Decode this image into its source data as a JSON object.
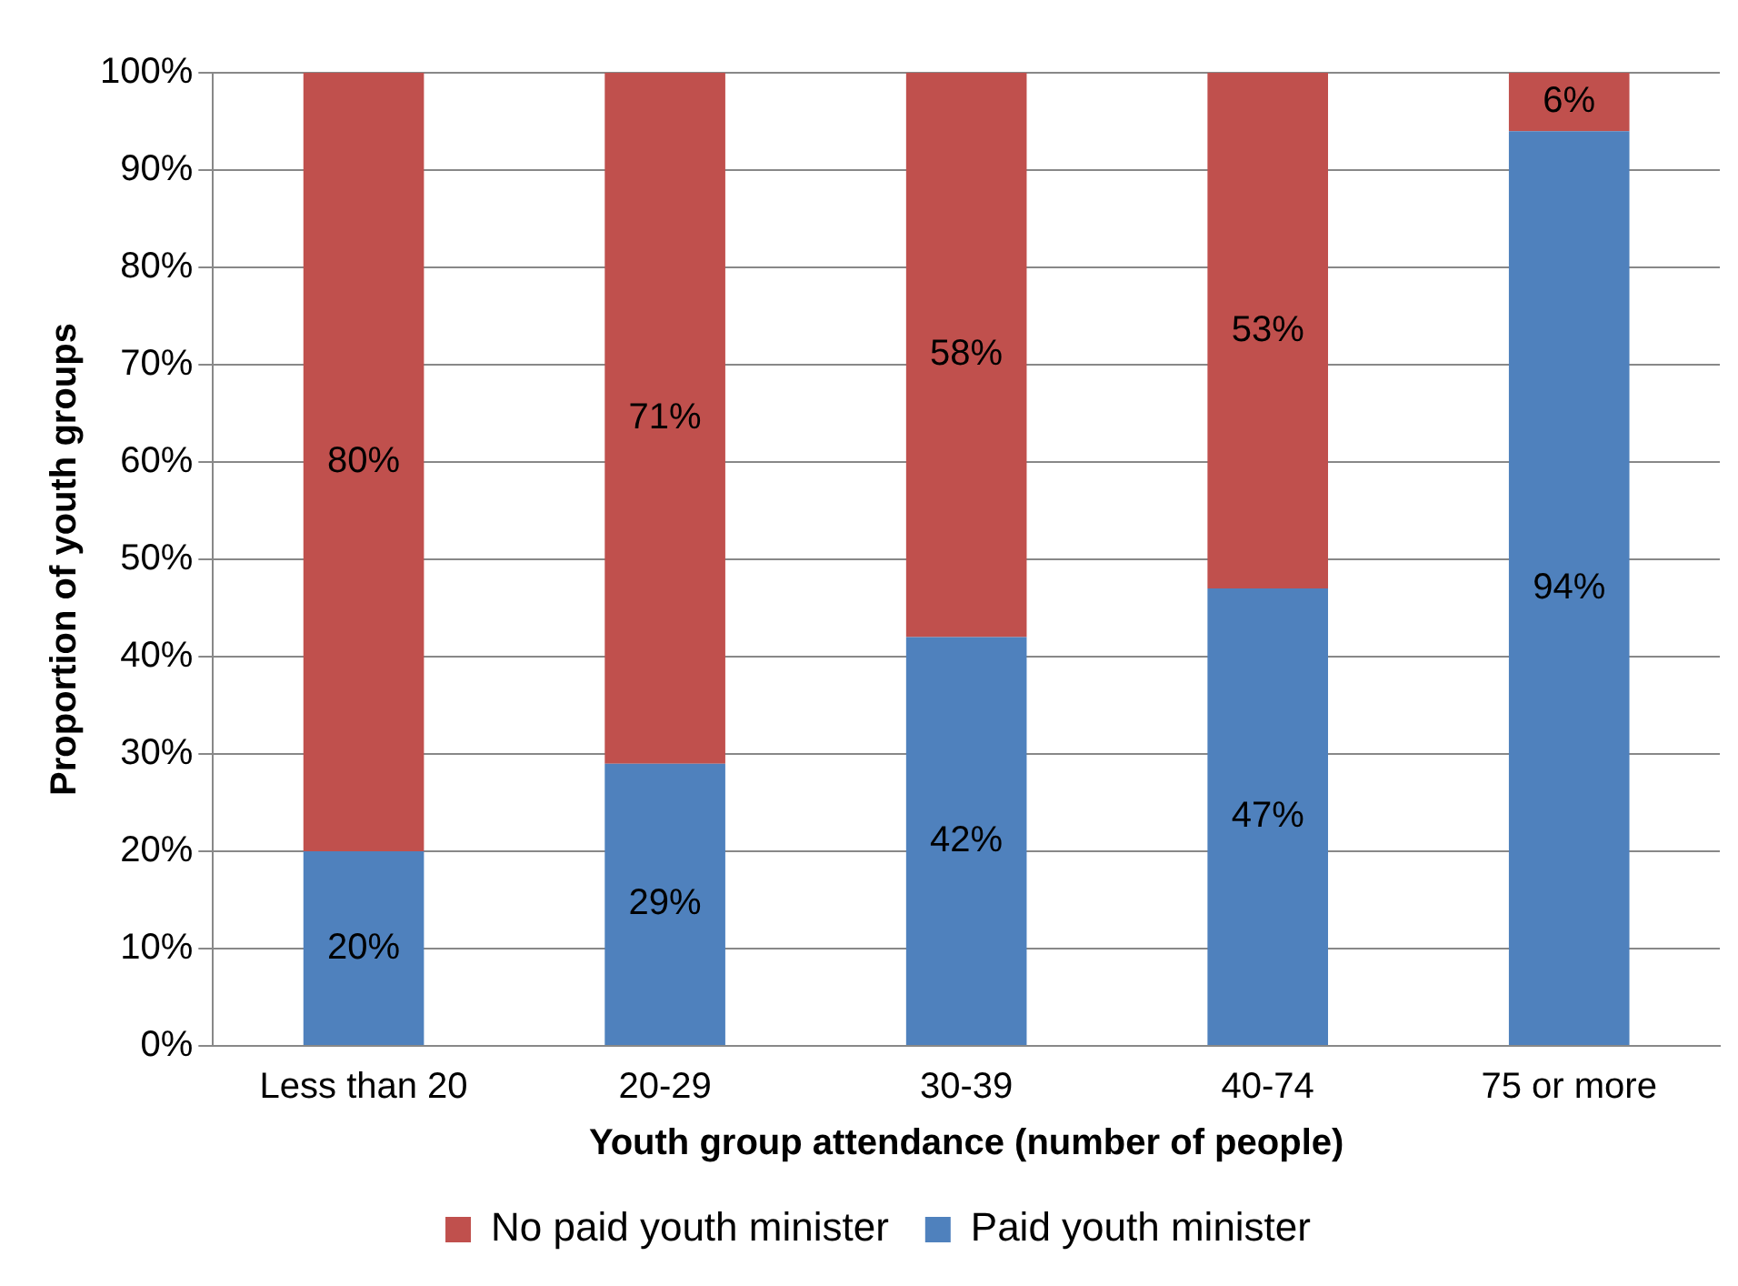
{
  "chart_data": {
    "type": "bar",
    "stacked": true,
    "xlabel": "Youth group attendance (number of people)",
    "ylabel": "Proportion of youth groups",
    "categories": [
      "Less than 20",
      "20-29",
      "30-39",
      "40-74",
      "75 or more"
    ],
    "series": [
      {
        "name": "Paid youth minister",
        "color": "#4f81bd",
        "values": [
          20,
          29,
          42,
          47,
          94
        ],
        "value_labels": [
          "20%",
          "29%",
          "42%",
          "47%",
          "94%"
        ]
      },
      {
        "name": "No paid youth minister",
        "color": "#c0504d",
        "values": [
          80,
          71,
          58,
          53,
          6
        ],
        "value_labels": [
          "80%",
          "71%",
          "58%",
          "53%",
          "6%"
        ]
      }
    ],
    "ylim": [
      0,
      100
    ],
    "yticks": [
      {
        "value": 0,
        "label": "0%"
      },
      {
        "value": 10,
        "label": "10%"
      },
      {
        "value": 20,
        "label": "20%"
      },
      {
        "value": 30,
        "label": "30%"
      },
      {
        "value": 40,
        "label": "40%"
      },
      {
        "value": 50,
        "label": "50%"
      },
      {
        "value": 60,
        "label": "60%"
      },
      {
        "value": 70,
        "label": "70%"
      },
      {
        "value": 80,
        "label": "80%"
      },
      {
        "value": 90,
        "label": "90%"
      },
      {
        "value": 100,
        "label": "100%"
      }
    ],
    "grid": "y",
    "legend": "bottom"
  }
}
